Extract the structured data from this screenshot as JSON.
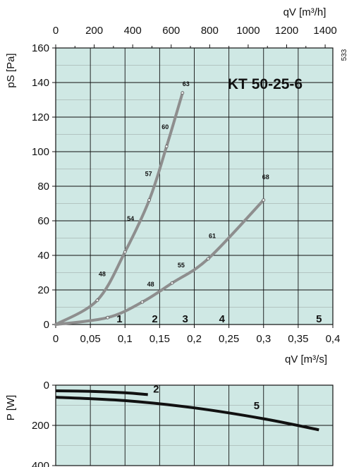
{
  "chart_data": [
    {
      "type": "line",
      "title": "KT  50-25-6",
      "side_code": "533",
      "xlabel_bottom": "qV [m³/s]",
      "xlabel_top": "qV [m³/h]",
      "ylabel": "pS [Pa]",
      "xlim": [
        0,
        0.4
      ],
      "ylim": [
        0,
        160
      ],
      "x_ticks": [
        0,
        0.05,
        0.1,
        0.15,
        0.2,
        0.25,
        0.3,
        0.35,
        0.4
      ],
      "x_tick_labels": [
        "0",
        "0,05",
        "0,1",
        "0,15",
        "0,2",
        "0,25",
        "0,3",
        "0,35",
        "0,4"
      ],
      "top_ticks_m3h": [
        0,
        200,
        400,
        600,
        800,
        1000,
        1200,
        1400
      ],
      "top_tick_labels": [
        "0",
        "200",
        "400",
        "600",
        "800",
        "1000",
        "1200",
        "1400"
      ],
      "y_ticks": [
        0,
        20,
        40,
        60,
        80,
        100,
        120,
        140,
        160
      ],
      "y_tick_labels": [
        "0",
        "20",
        "40",
        "60",
        "80",
        "100",
        "120",
        "140",
        "160"
      ],
      "grid": true,
      "background_color": "#cfe8e4",
      "curve_color": "#8e8e8e",
      "series": [
        {
          "x": [
            0,
            0.06,
            0.1,
            0.135,
            0.16,
            0.183
          ],
          "y": [
            0,
            14,
            42,
            72,
            103,
            134
          ],
          "noise_labels": [
            {
              "x": 0.067,
              "y": 28,
              "label": "48"
            },
            {
              "x": 0.108,
              "y": 60,
              "label": "54"
            },
            {
              "x": 0.134,
              "y": 86,
              "label": "57"
            },
            {
              "x": 0.158,
              "y": 113,
              "label": "60"
            },
            {
              "x": 0.188,
              "y": 138,
              "label": "63"
            }
          ]
        },
        {
          "x": [
            0,
            0.075,
            0.125,
            0.168,
            0.22,
            0.3
          ],
          "y": [
            0,
            4,
            13,
            24,
            38,
            72
          ],
          "noise_labels": [
            {
              "x": 0.137,
              "y": 22,
              "label": "48"
            },
            {
              "x": 0.181,
              "y": 33,
              "label": "55"
            },
            {
              "x": 0.226,
              "y": 50,
              "label": "61"
            },
            {
              "x": 0.303,
              "y": 84,
              "label": "68"
            }
          ]
        }
      ],
      "speed_labels": [
        {
          "x": 0.092,
          "label": "1"
        },
        {
          "x": 0.143,
          "label": "2"
        },
        {
          "x": 0.187,
          "label": "3"
        },
        {
          "x": 0.24,
          "label": "4"
        },
        {
          "x": 0.38,
          "label": "5"
        }
      ]
    },
    {
      "type": "line",
      "xlim": [
        0,
        0.4
      ],
      "ylim": [
        0,
        400
      ],
      "y_inverted": true,
      "ylabel": "P [W]",
      "y_ticks": [
        0,
        200,
        400
      ],
      "y_tick_labels": [
        "0",
        "200",
        "400"
      ],
      "grid": true,
      "curve_color": "#111111",
      "series": [
        {
          "name": "2",
          "x": [
            0,
            0.05,
            0.1,
            0.133
          ],
          "y": [
            28,
            31,
            38,
            47
          ]
        },
        {
          "name": "5",
          "x": [
            0,
            0.1,
            0.2,
            0.3,
            0.38
          ],
          "y": [
            60,
            77,
            113,
            167,
            222
          ]
        }
      ],
      "series_labels": [
        {
          "x": 0.145,
          "y": 36,
          "label": "2"
        },
        {
          "x": 0.29,
          "y": 120,
          "label": "5"
        }
      ]
    }
  ]
}
